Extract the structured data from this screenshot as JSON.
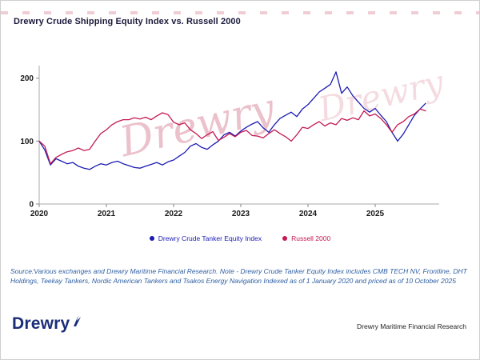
{
  "title": "Drewry Crude Shipping Equity Index vs. Russell 2000",
  "watermark_text": "Drewry",
  "chart_data": {
    "type": "line",
    "x_unit": "monthly, Jan 2020 - Oct 2025",
    "x_tick_labels": [
      "2020",
      "2021",
      "2022",
      "2023",
      "2024",
      "2025"
    ],
    "y_ticks": [
      0,
      100,
      200
    ],
    "ylim": [
      0,
      220
    ],
    "grid": false,
    "legend_position": "bottom",
    "series": [
      {
        "name": "Drewry Crude Tanker Equity Index",
        "color": "#1b1bb3",
        "values": [
          100,
          86,
          62,
          72,
          68,
          64,
          66,
          60,
          57,
          55,
          60,
          64,
          62,
          66,
          68,
          64,
          61,
          58,
          57,
          60,
          63,
          66,
          62,
          67,
          70,
          76,
          82,
          92,
          96,
          90,
          87,
          94,
          100,
          110,
          114,
          108,
          116,
          122,
          127,
          131,
          121,
          114,
          126,
          136,
          141,
          146,
          139,
          151,
          158,
          168,
          178,
          184,
          190,
          210,
          176,
          186,
          172,
          162,
          152,
          146,
          152,
          141,
          131,
          114,
          100,
          111,
          126,
          141,
          151,
          160
        ]
      },
      {
        "name": "Russell 2000",
        "color": "#c41a52",
        "values": [
          100,
          92,
          64,
          74,
          79,
          83,
          85,
          89,
          85,
          87,
          100,
          112,
          118,
          126,
          131,
          134,
          134,
          137,
          135,
          138,
          134,
          140,
          145,
          142,
          130,
          126,
          129,
          118,
          112,
          104,
          110,
          115,
          101,
          106,
          112,
          107,
          114,
          117,
          109,
          108,
          105,
          112,
          118,
          112,
          107,
          100,
          110,
          122,
          120,
          126,
          131,
          124,
          129,
          126,
          136,
          133,
          137,
          134,
          148,
          140,
          143,
          136,
          126,
          114,
          126,
          131,
          139,
          143,
          151,
          148
        ]
      }
    ],
    "title": "Drewry Crude Shipping Equity Index vs. Russell 2000",
    "xlabel": "",
    "ylabel": ""
  },
  "source_note": "Source:Various exchanges and Drewry Maritime Financial Research. Note - Drewry Crude Tanker Equity Index includes CMB TECH NV, Frontline, DHT Holdings, Teekay Tankers, Nordic American Tankers and Tsakos Energy Navigation Indexed as of 1 January 2020 and priced as of 10 October 2025",
  "footer": {
    "logo_text": "Drewry",
    "right_text": "Drewry Maritime Financial Research"
  }
}
